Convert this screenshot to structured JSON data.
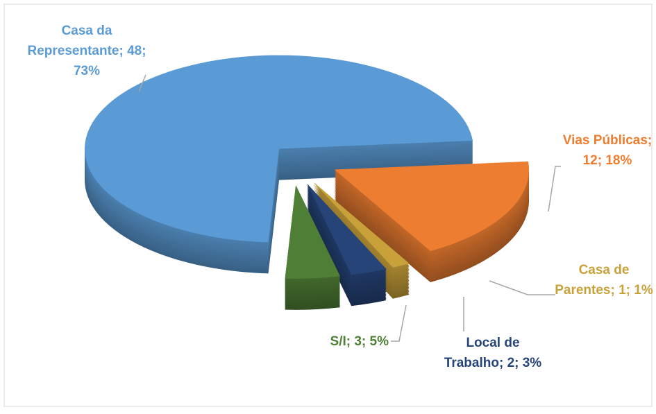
{
  "chart_data": {
    "type": "pie3d",
    "values": [
      12,
      1,
      2,
      3,
      48
    ],
    "value_labels": [
      "Vias Públicas; 12; 18%",
      "Casa de Parentes; 1; 1%",
      "Local de Trabalho; 2; 3%",
      "S/I; 3; 5%",
      "Casa da Representante; 48; 73%"
    ],
    "colors": [
      "#ED7D31",
      "#C9A13A",
      "#264478",
      "#4F7F35",
      "#5B9BD5"
    ]
  }
}
